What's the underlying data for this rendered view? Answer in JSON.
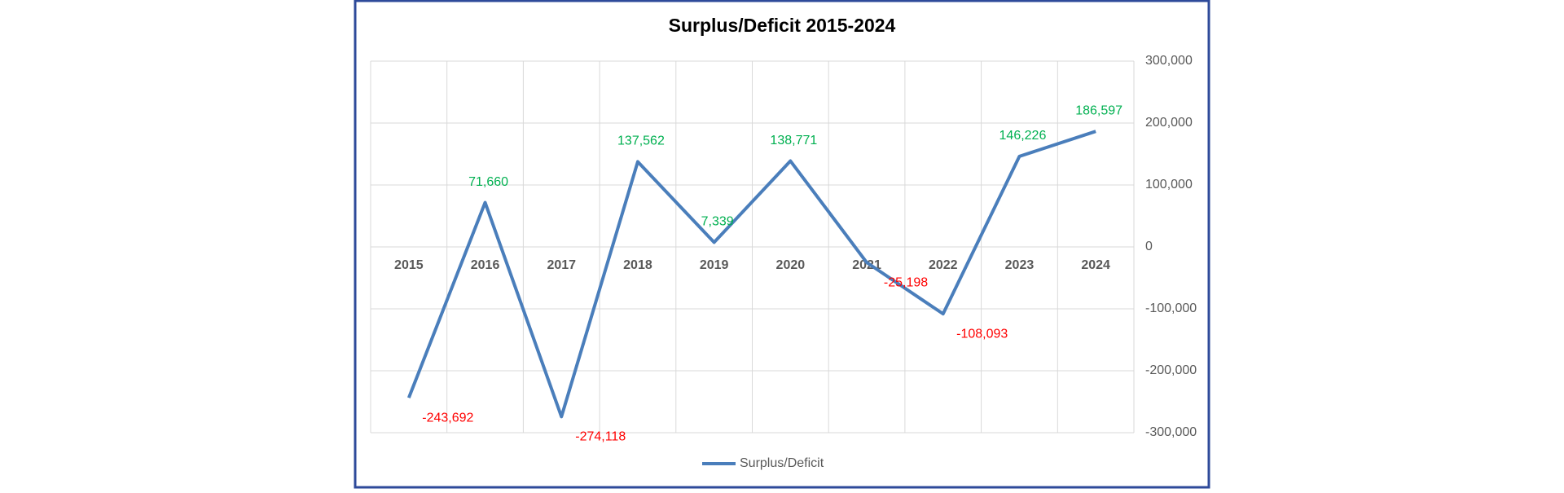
{
  "chart_data": {
    "type": "line",
    "title": "Surplus/Deficit 2015-2024",
    "categories": [
      "2015",
      "2016",
      "2017",
      "2018",
      "2019",
      "2020",
      "2021",
      "2022",
      "2023",
      "2024"
    ],
    "series": [
      {
        "name": "Surplus/Deficit",
        "color": "#4a7ebb",
        "values": [
          -243692,
          71660,
          -274118,
          137562,
          7339,
          138771,
          -25198,
          -108093,
          146226,
          186597
        ],
        "value_labels": [
          "-243,692",
          "71,660",
          "-274,118",
          "137,562",
          "7,339",
          "138,771",
          "-25,198",
          "-108,093",
          "146,226",
          "186,597"
        ]
      }
    ],
    "label_colors": {
      "positive": "#00b050",
      "negative": "#ff0000"
    },
    "ylim": [
      -300000,
      300000
    ],
    "yticks": [
      {
        "value": -300000,
        "label": "-300,000"
      },
      {
        "value": -200000,
        "label": "-200,000"
      },
      {
        "value": -100000,
        "label": "-100,000"
      },
      0,
      {
        "value": 100000,
        "label": "100,000"
      },
      {
        "value": 200000,
        "label": "200,000"
      },
      {
        "value": 300000,
        "label": "300,000"
      }
    ],
    "y_axis_side": "right",
    "grid": true,
    "legend": "bottom"
  }
}
